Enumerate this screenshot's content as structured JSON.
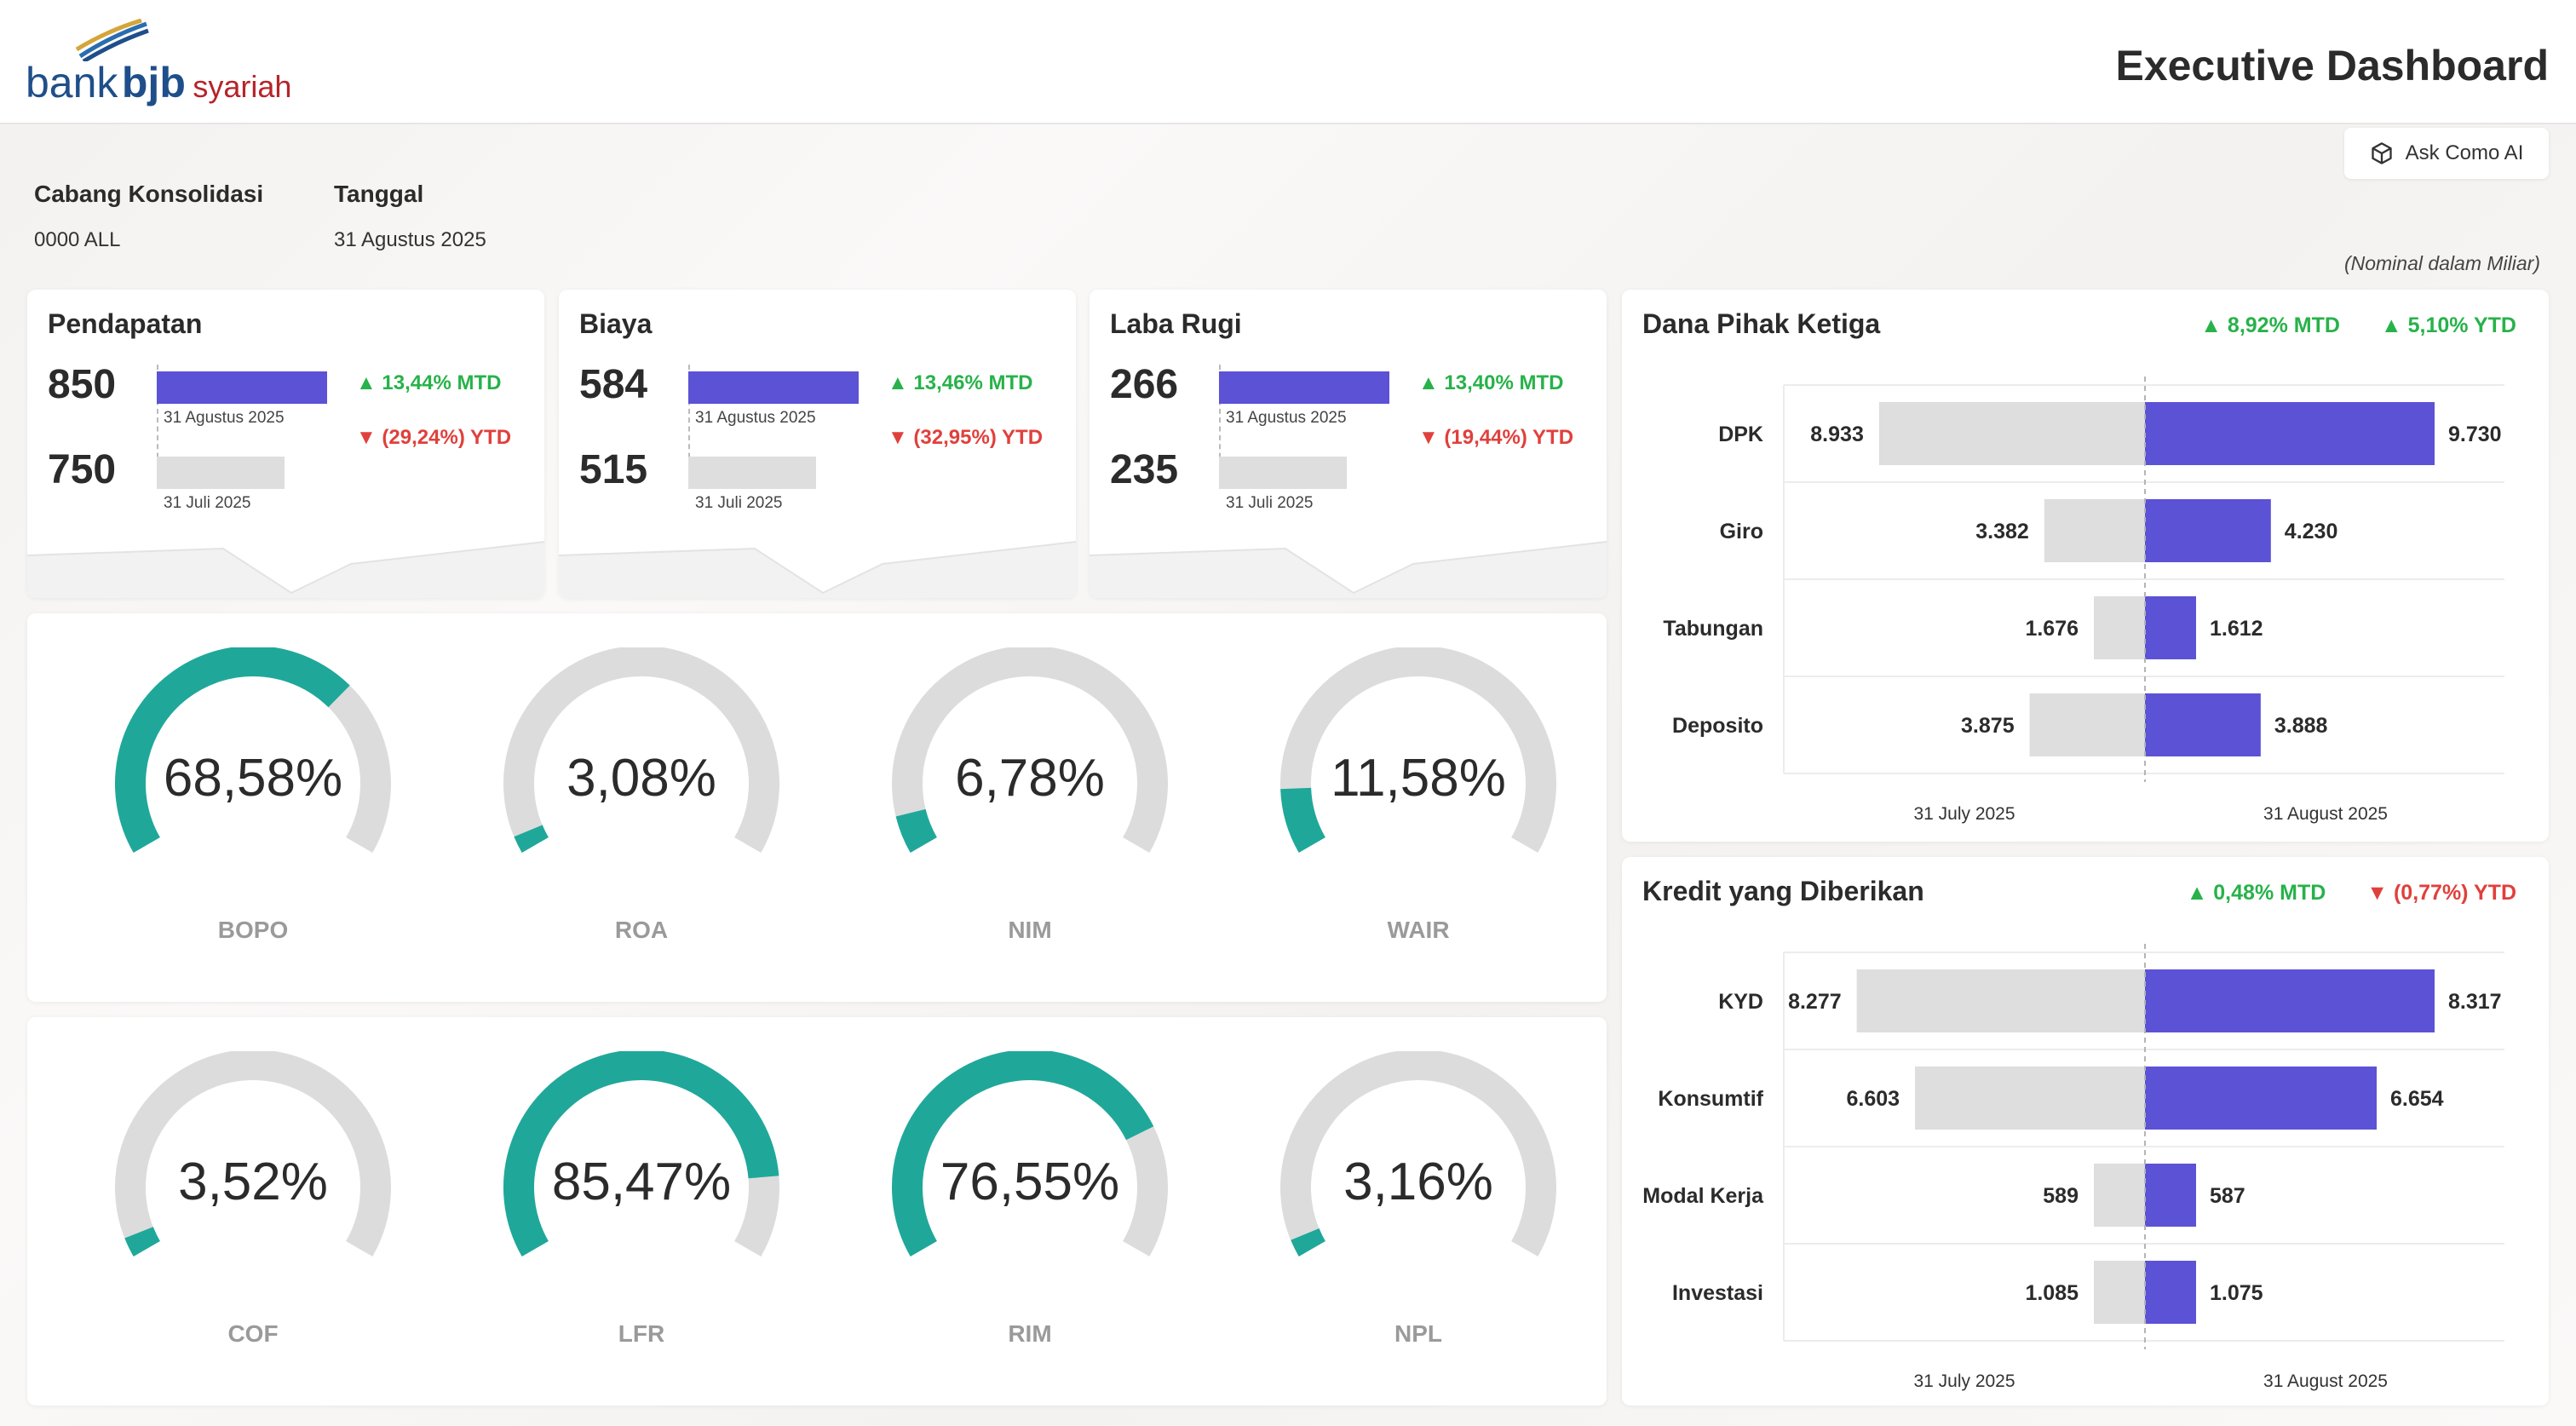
{
  "header": {
    "logo": {
      "bank": "bank",
      "bjb": "bjb",
      "syariah": "syariah"
    },
    "title": "Executive Dashboard"
  },
  "filters": {
    "branch_label": "Cabang Konsolidasi",
    "branch_value": "0000 ALL",
    "date_label": "Tanggal",
    "date_value": "31 Agustus 2025"
  },
  "ask_button": {
    "label": "Ask Como AI",
    "icon": "cube-icon"
  },
  "nominal_note": "(Nominal dalam Miliar)",
  "kpis": [
    {
      "title": "Pendapatan",
      "current": "850",
      "previous": "750",
      "current_value": 850,
      "previous_value": 750,
      "current_date": "31 Agustus 2025",
      "previous_date": "31 Juli 2025",
      "mtd": "13,44% MTD",
      "mtd_dir": "up",
      "ytd": "(29,24%) YTD",
      "ytd_dir": "down"
    },
    {
      "title": "Biaya",
      "current": "584",
      "previous": "515",
      "current_value": 584,
      "previous_value": 515,
      "current_date": "31 Agustus 2025",
      "previous_date": "31 Juli 2025",
      "mtd": "13,46% MTD",
      "mtd_dir": "up",
      "ytd": "(32,95%) YTD",
      "ytd_dir": "down"
    },
    {
      "title": "Laba Rugi",
      "current": "266",
      "previous": "235",
      "current_value": 266,
      "previous_value": 235,
      "current_date": "31 Agustus 2025",
      "previous_date": "31 Juli 2025",
      "mtd": "13,40% MTD",
      "mtd_dir": "up",
      "ytd": "(19,44%) YTD",
      "ytd_dir": "down"
    }
  ],
  "gauges_row1": [
    {
      "label": "BOPO",
      "value_text": "68,58%",
      "value": 68.58
    },
    {
      "label": "ROA",
      "value_text": "3,08%",
      "value": 3.08
    },
    {
      "label": "NIM",
      "value_text": "6,78%",
      "value": 6.78
    },
    {
      "label": "WAIR",
      "value_text": "11,58%",
      "value": 11.58
    }
  ],
  "gauges_row2": [
    {
      "label": "COF",
      "value_text": "3,52%",
      "value": 3.52
    },
    {
      "label": "LFR",
      "value_text": "85,47%",
      "value": 85.47
    },
    {
      "label": "RIM",
      "value_text": "76,55%",
      "value": 76.55
    },
    {
      "label": "NPL",
      "value_text": "3,16%",
      "value": 3.16
    }
  ],
  "dpk": {
    "title": "Dana Pihak Ketiga",
    "mtd": "8,92% MTD",
    "mtd_dir": "up",
    "ytd": "5,10% YTD",
    "ytd_dir": "up",
    "chart_data": {
      "type": "bar",
      "categories": [
        "DPK",
        "Giro",
        "Tabungan",
        "Deposito"
      ],
      "series": [
        {
          "name": "31 July 2025",
          "values": [
            8933,
            3382,
            1676,
            3875
          ],
          "labels": [
            "8.933",
            "3.382",
            "1.676",
            "3.875"
          ]
        },
        {
          "name": "31 August 2025",
          "values": [
            9730,
            4230,
            1612,
            3888
          ],
          "labels": [
            "9.730",
            "4.230",
            "1.612",
            "3.888"
          ]
        }
      ],
      "colors": [
        "#dedede",
        "#5b52d6"
      ]
    }
  },
  "kyd": {
    "title": "Kredit yang Diberikan",
    "mtd": "0,48% MTD",
    "mtd_dir": "up",
    "ytd": "(0,77%) YTD",
    "ytd_dir": "down",
    "chart_data": {
      "type": "bar",
      "categories": [
        "KYD",
        "Konsumtif",
        "Modal Kerja",
        "Investasi"
      ],
      "series": [
        {
          "name": "31 July 2025",
          "values": [
            8277,
            6603,
            589,
            1085
          ],
          "labels": [
            "8.277",
            "6.603",
            "589",
            "1.085"
          ]
        },
        {
          "name": "31 August 2025",
          "values": [
            8317,
            6654,
            587,
            1075
          ],
          "labels": [
            "8.317",
            "6.654",
            "587",
            "1.075"
          ]
        }
      ],
      "colors": [
        "#dedede",
        "#5b52d6"
      ]
    }
  },
  "colors": {
    "accent": "#5b52d6",
    "gauge_fill": "#1fa89a",
    "gauge_track": "#dcdcdc",
    "up": "#27b24a",
    "down": "#e0403c",
    "prev_bar": "#dedede"
  }
}
